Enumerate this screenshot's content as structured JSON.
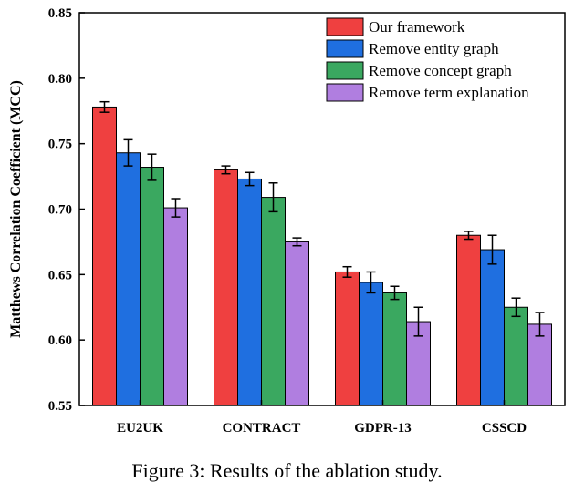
{
  "chart_data": {
    "type": "bar",
    "ylabel": "Matthews Correlation Coefficient (MCC)",
    "xlabel": "",
    "ylim": [
      0.55,
      0.85
    ],
    "yticks": [
      0.55,
      0.6,
      0.65,
      0.7,
      0.75,
      0.8,
      0.85
    ],
    "ytick_labels": [
      "0.55",
      "0.60",
      "0.65",
      "0.70",
      "0.75",
      "0.80",
      "0.85"
    ],
    "categories": [
      "EU2UK",
      "CONTRACT",
      "GDPR-13",
      "CSSCD"
    ],
    "legend_position": "top-right",
    "grid": false,
    "series": [
      {
        "name": "Our framework",
        "color": "#ef4040",
        "values": [
          0.778,
          0.73,
          0.652,
          0.68
        ],
        "errors": [
          0.004,
          0.003,
          0.004,
          0.003
        ]
      },
      {
        "name": "Remove entity graph",
        "color": "#1f6fe0",
        "values": [
          0.743,
          0.723,
          0.644,
          0.669
        ],
        "errors": [
          0.01,
          0.005,
          0.008,
          0.011
        ]
      },
      {
        "name": "Remove concept graph",
        "color": "#3aa860",
        "values": [
          0.732,
          0.709,
          0.636,
          0.625
        ],
        "errors": [
          0.01,
          0.011,
          0.005,
          0.007
        ]
      },
      {
        "name": "Remove term explanation",
        "color": "#b07ee0",
        "values": [
          0.701,
          0.675,
          0.614,
          0.612
        ],
        "errors": [
          0.007,
          0.003,
          0.011,
          0.009
        ]
      }
    ]
  },
  "caption": "Figure 3: Results of the ablation study."
}
